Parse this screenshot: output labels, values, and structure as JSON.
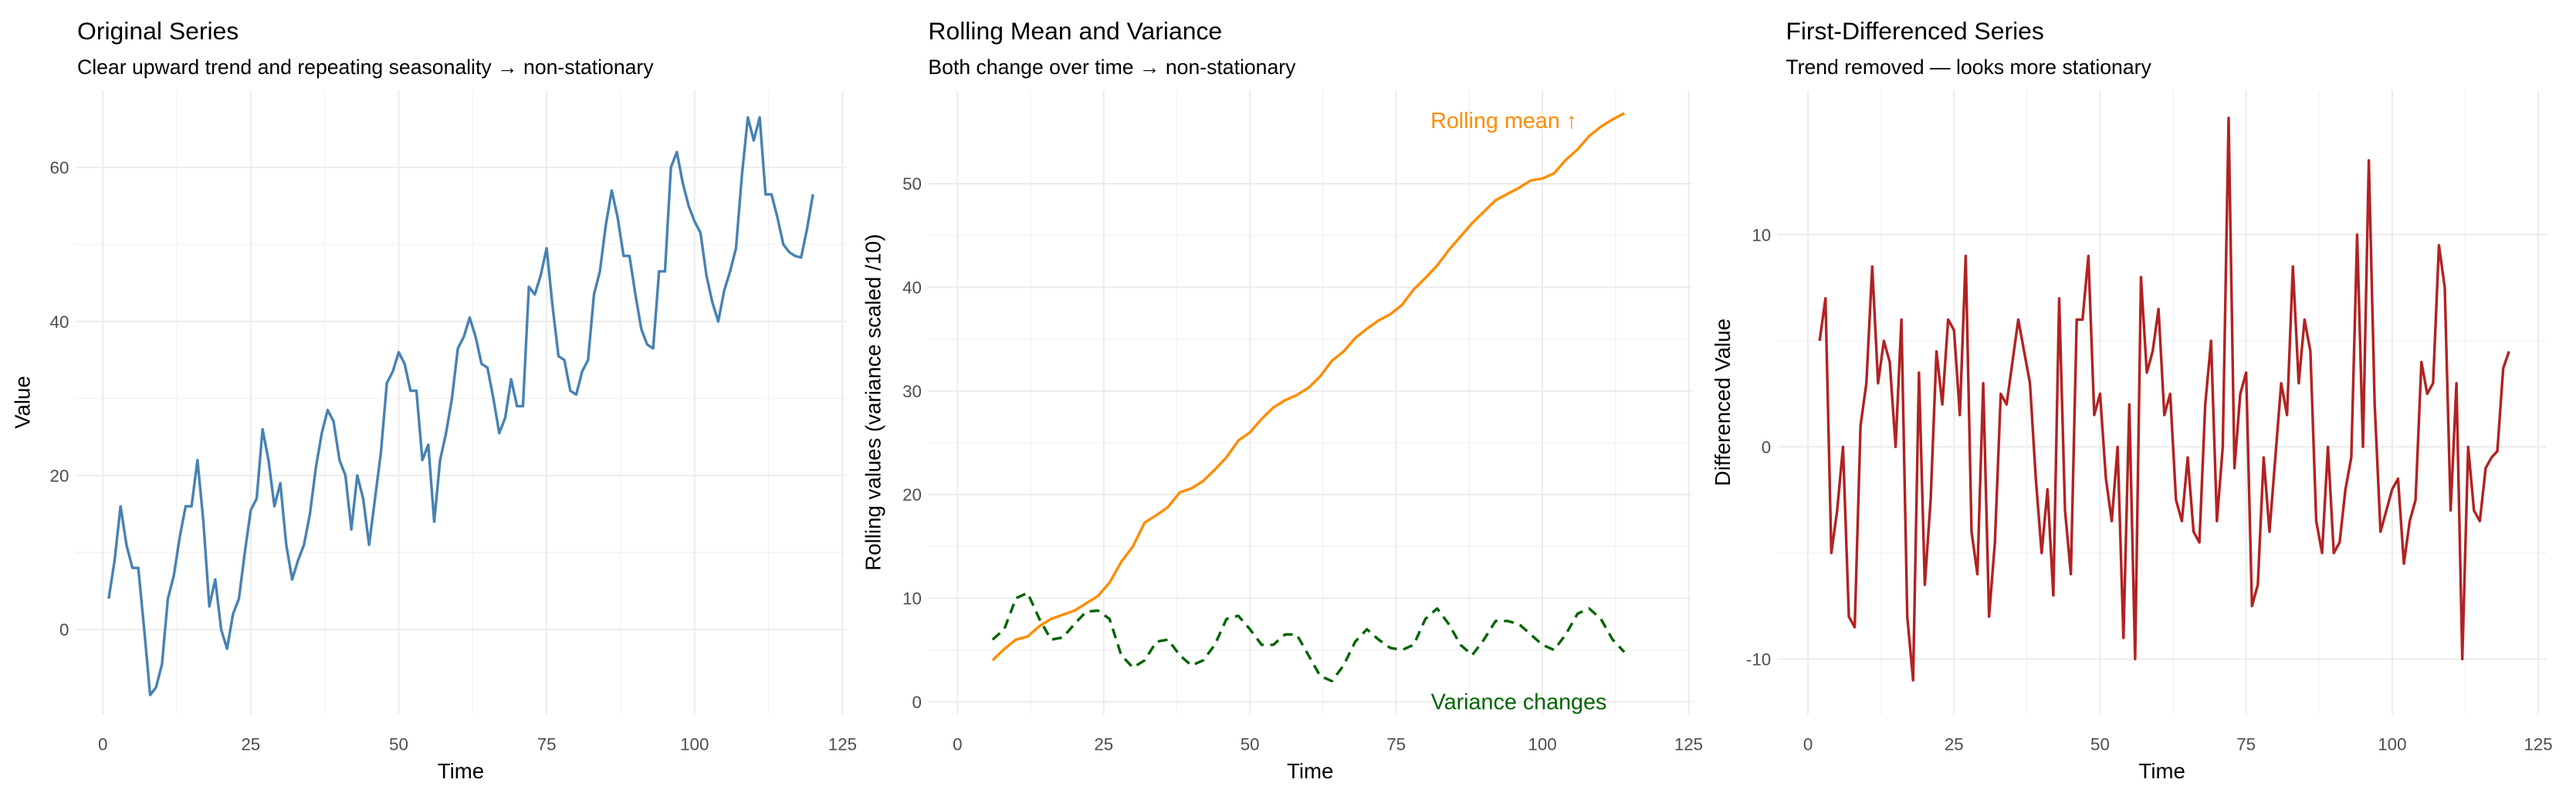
{
  "chart_data": [
    {
      "type": "line",
      "title": "Original Series",
      "subtitle": "Clear upward trend and repeating seasonality → non-stationary",
      "x_label": "Time",
      "y_label": "Value",
      "color": "#4682b4",
      "grid": true,
      "xlim": [
        -4.6,
        125.6
      ],
      "xticks": [
        0,
        25,
        50,
        75,
        100,
        125
      ],
      "ylim": [
        -11,
        70
      ],
      "yticks": [
        0,
        20,
        40,
        60
      ],
      "x": [
        1,
        2,
        3,
        4,
        5,
        6,
        7,
        8,
        9,
        10,
        11,
        12,
        13,
        14,
        15,
        16,
        17,
        18,
        19,
        20,
        21,
        22,
        23,
        24,
        25,
        26,
        27,
        28,
        29,
        30,
        31,
        32,
        33,
        34,
        35,
        36,
        37,
        38,
        39,
        40,
        41,
        42,
        43,
        44,
        45,
        46,
        47,
        48,
        49,
        50,
        51,
        52,
        53,
        54,
        55,
        56,
        57,
        58,
        59,
        60,
        61,
        62,
        63,
        64,
        65,
        66,
        67,
        68,
        69,
        70,
        71,
        72,
        73,
        74,
        75,
        76,
        77,
        78,
        79,
        80,
        81,
        82,
        83,
        84,
        85,
        86,
        87,
        88,
        89,
        90,
        91,
        92,
        93,
        94,
        95,
        96,
        97,
        98,
        99,
        100,
        101,
        102,
        103,
        104,
        105,
        106,
        107,
        108,
        109,
        110,
        111,
        112,
        113,
        114,
        115,
        116,
        117,
        118,
        119,
        120
      ],
      "values": [
        4,
        9,
        16,
        11,
        8,
        8,
        0,
        -8.5,
        -7.5,
        -4.5,
        4,
        7,
        12,
        16,
        16,
        22,
        14,
        3,
        6.5,
        0,
        -2.5,
        2,
        4,
        10,
        15.5,
        17,
        26,
        22,
        16,
        19,
        11,
        6.5,
        9,
        11,
        15,
        21,
        25.5,
        28.5,
        27,
        22,
        20,
        13,
        20,
        17,
        11,
        17,
        23,
        32,
        33.5,
        36,
        34.5,
        31,
        31,
        22,
        24,
        14,
        22,
        25.5,
        30,
        36.5,
        38,
        40.5,
        38,
        34.5,
        34,
        30,
        25.5,
        27.5,
        32.5,
        29,
        29,
        44.5,
        43.5,
        46,
        49.5,
        42,
        35.5,
        35,
        31,
        30.5,
        33.5,
        35,
        43.5,
        46.5,
        52.5,
        57,
        53.5,
        48.5,
        48.5,
        43.5,
        39,
        37,
        36.5,
        46.5,
        46.5,
        60,
        62,
        58,
        55,
        53,
        51.5,
        46,
        42.5,
        40,
        44,
        46.5,
        49.5,
        59,
        66.5,
        63.5,
        66.5,
        56.5,
        56.5,
        53.5,
        50,
        49,
        48.5,
        48.3,
        52,
        56.5
      ]
    },
    {
      "type": "line",
      "title": "Rolling Mean and Variance",
      "subtitle": "Both change over time → non-stationary",
      "x_label": "Time",
      "y_label": "Rolling values (variance scaled /10)",
      "grid": true,
      "xlim": [
        -5,
        125.6
      ],
      "xticks": [
        0,
        25,
        50,
        75,
        100,
        125
      ],
      "ylim": [
        -1.2,
        59
      ],
      "yticks": [
        0,
        10,
        20,
        30,
        40,
        50
      ],
      "x": [
        6,
        8,
        10,
        12,
        14,
        16,
        18,
        20,
        22,
        24,
        26,
        28,
        30,
        32,
        34,
        36,
        38,
        40,
        42,
        44,
        46,
        48,
        50,
        52,
        54,
        56,
        58,
        60,
        62,
        64,
        66,
        68,
        70,
        72,
        74,
        76,
        78,
        80,
        82,
        84,
        86,
        88,
        90,
        92,
        94,
        96,
        98,
        100,
        102,
        104,
        106,
        108,
        110,
        112,
        114
      ],
      "series": [
        {
          "color": "#ff8c00",
          "linestyle": "solid",
          "values": [
            4.0,
            5.1,
            6.0,
            6.3,
            7.3,
            8.0,
            8.4,
            8.8,
            9.5,
            10.2,
            11.5,
            13.5,
            15.0,
            17.3,
            18.0,
            18.8,
            20.2,
            20.6,
            21.3,
            22.4,
            23.6,
            25.2,
            26.0,
            27.3,
            28.4,
            29.1,
            29.6,
            30.3,
            31.4,
            32.9,
            33.8,
            35.1,
            36.0,
            36.8,
            37.4,
            38.3,
            39.8,
            40.9,
            42.1,
            43.6,
            44.9,
            46.2,
            47.3,
            48.4,
            49.0,
            49.6,
            50.3,
            50.5,
            51.0,
            52.3,
            53.3,
            54.6,
            55.5,
            56.2,
            56.8
          ]
        },
        {
          "color": "#006400",
          "linestyle": "dashed",
          "values": [
            6,
            7,
            10,
            10.5,
            8,
            6,
            6.2,
            7.5,
            8.7,
            8.8,
            8,
            4.5,
            3.3,
            4,
            5.8,
            6,
            4.5,
            3.5,
            4,
            5.5,
            8,
            8.3,
            7,
            5.5,
            5.5,
            6.5,
            6.5,
            4.5,
            2.5,
            2,
            3.5,
            5.8,
            7,
            6,
            5.2,
            5,
            5.5,
            8,
            9,
            7.5,
            5.5,
            4.5,
            6,
            7.8,
            7.8,
            7.5,
            6.5,
            5.5,
            5,
            6.5,
            8.5,
            9,
            8,
            6,
            4.8
          ]
        }
      ],
      "annotations": [
        {
          "text": "Rolling mean ↑",
          "color": "#ff8c00"
        },
        {
          "text": "Variance changes",
          "color": "#006400"
        }
      ]
    },
    {
      "type": "line",
      "title": "First-Differenced Series",
      "subtitle": "Trend removed — looks more stationary",
      "x_label": "Time",
      "y_label": "Differenced Value",
      "color": "#b22222",
      "grid": true,
      "xlim": [
        -5.2,
        126.4
      ],
      "xticks": [
        0,
        25,
        50,
        75,
        100,
        125
      ],
      "ylim": [
        -12.6,
        16.8
      ],
      "yticks": [
        -10,
        0,
        10
      ],
      "x": [
        2,
        3,
        4,
        5,
        6,
        7,
        8,
        9,
        10,
        11,
        12,
        13,
        14,
        15,
        16,
        17,
        18,
        19,
        20,
        21,
        22,
        23,
        24,
        25,
        26,
        27,
        28,
        29,
        30,
        31,
        32,
        33,
        34,
        35,
        36,
        37,
        38,
        39,
        40,
        41,
        42,
        43,
        44,
        45,
        46,
        47,
        48,
        49,
        50,
        51,
        52,
        53,
        54,
        55,
        56,
        57,
        58,
        59,
        60,
        61,
        62,
        63,
        64,
        65,
        66,
        67,
        68,
        69,
        70,
        71,
        72,
        73,
        74,
        75,
        76,
        77,
        78,
        79,
        80,
        81,
        82,
        83,
        84,
        85,
        86,
        87,
        88,
        89,
        90,
        91,
        92,
        93,
        94,
        95,
        96,
        97,
        98,
        99,
        100,
        101,
        102,
        103,
        104,
        105,
        106,
        107,
        108,
        109,
        110,
        111,
        112,
        113,
        114,
        115,
        116,
        117,
        118,
        119,
        120
      ],
      "values": [
        5,
        7,
        -5,
        -3,
        0,
        -8,
        -8.5,
        1,
        3,
        8.5,
        3,
        5,
        4,
        0,
        6,
        -8,
        -11,
        3.5,
        -6.5,
        -2.5,
        4.5,
        2,
        6,
        5.5,
        1.5,
        9,
        -4,
        -6,
        3,
        -8,
        -4.5,
        2.5,
        2,
        4,
        6,
        4.5,
        3,
        -1.5,
        -5,
        -2,
        -7,
        7,
        -3,
        -6,
        6,
        6,
        9,
        1.5,
        2.5,
        -1.5,
        -3.5,
        0,
        -9,
        2,
        -10,
        8,
        3.5,
        4.5,
        6.5,
        1.5,
        2.5,
        -2.5,
        -3.5,
        -0.5,
        -4,
        -4.5,
        2,
        5,
        -3.5,
        0,
        15.5,
        -1,
        2.5,
        3.5,
        -7.5,
        -6.5,
        -0.5,
        -4,
        -0.5,
        3,
        1.5,
        8.5,
        3,
        6,
        4.5,
        -3.5,
        -5,
        0,
        -5,
        -4.5,
        -2,
        -0.5,
        10,
        0,
        13.5,
        2,
        -4,
        -3,
        -2,
        -1.5,
        -5.5,
        -3.5,
        -2.5,
        4,
        2.5,
        3,
        9.5,
        7.5,
        -3,
        3,
        -10,
        0,
        -3,
        -3.5,
        -1,
        -0.5,
        -0.2,
        3.7,
        4.5
      ]
    }
  ]
}
